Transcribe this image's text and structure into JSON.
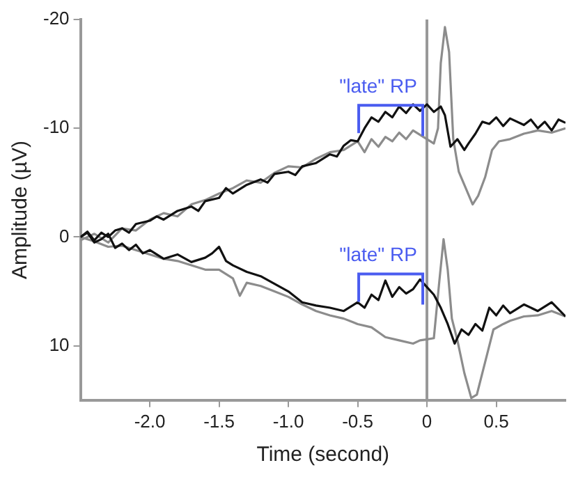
{
  "chart_data": {
    "type": "line",
    "xlabel": "Time (second)",
    "ylabel": "Amplitude (µV)",
    "xlim": [
      -2.5,
      1.0
    ],
    "xticks": [
      {
        "value": -2.0,
        "label": "-2.0"
      },
      {
        "value": -1.5,
        "label": "-1.5"
      },
      {
        "value": -1.0,
        "label": "-1.0"
      },
      {
        "value": -0.5,
        "label": "-0.5"
      },
      0,
      0.5
    ],
    "ylim": [
      15,
      -20
    ],
    "yticks": [
      -20,
      -10,
      0,
      10
    ],
    "grid": false,
    "legend": false,
    "marker": "none",
    "line_style": "solid",
    "ref_lines": [
      {
        "axis": "x",
        "value": 0,
        "color": "#999999"
      }
    ],
    "annotations": [
      {
        "text": "\"late\" RP",
        "x": -0.05,
        "y": -11.6
      },
      {
        "text": "\"late\" RP",
        "x": -0.05,
        "y": 3.9
      }
    ],
    "series": [
      {
        "color": "#111111",
        "x": [
          -2.5,
          -2.45,
          -2.4,
          -2.35,
          -2.3,
          -2.25,
          -2.2,
          -2.15,
          -2.1,
          -2.0,
          -1.95,
          -1.9,
          -1.8,
          -1.7,
          -1.65,
          -1.6,
          -1.5,
          -1.45,
          -1.4,
          -1.3,
          -1.2,
          -1.15,
          -1.1,
          -1.0,
          -0.95,
          -0.9,
          -0.8,
          -0.7,
          -0.65,
          -0.6,
          -0.55,
          -0.5,
          -0.45,
          -0.4,
          -0.35,
          -0.3,
          -0.25,
          -0.2,
          -0.15,
          -0.1,
          -0.05,
          0,
          0.05,
          0.1,
          0.13,
          0.17,
          0.22,
          0.27,
          0.3,
          0.35,
          0.4,
          0.45,
          0.5,
          0.55,
          0.6,
          0.7,
          0.75,
          0.8,
          0.85,
          0.9,
          0.95,
          1.0
        ],
        "values": [
          0,
          -0.5,
          0.3,
          -0.4,
          0,
          -0.6,
          -0.8,
          -0.4,
          -1.2,
          -1.5,
          -1.9,
          -1.6,
          -2.4,
          -2.8,
          -2.4,
          -3.3,
          -3.6,
          -4.5,
          -4.0,
          -4.8,
          -5.3,
          -5.0,
          -5.8,
          -6.0,
          -5.7,
          -6.5,
          -6.8,
          -7.6,
          -7.4,
          -8.4,
          -8.9,
          -8.8,
          -10.0,
          -11.0,
          -10.6,
          -11.5,
          -11.0,
          -12.0,
          -11.4,
          -12.2,
          -11.6,
          -12.2,
          -11.5,
          -12.0,
          -11.2,
          -8.3,
          -9.0,
          -8.0,
          -8.6,
          -9.5,
          -10.6,
          -10.4,
          -11.0,
          -10.2,
          -10.9,
          -10.3,
          -10.8,
          -10.0,
          -10.6,
          -9.8,
          -10.8,
          -10.5
        ]
      },
      {
        "color": "#111111",
        "x": [
          -2.5,
          -2.45,
          -2.4,
          -2.35,
          -2.3,
          -2.25,
          -2.2,
          -2.15,
          -2.1,
          -2.05,
          -2.0,
          -1.9,
          -1.8,
          -1.7,
          -1.6,
          -1.55,
          -1.5,
          -1.45,
          -1.4,
          -1.3,
          -1.2,
          -1.1,
          -1.0,
          -0.9,
          -0.8,
          -0.7,
          -0.6,
          -0.5,
          -0.45,
          -0.4,
          -0.35,
          -0.3,
          -0.25,
          -0.2,
          -0.15,
          -0.1,
          -0.05,
          0,
          0.05,
          0.1,
          0.15,
          0.2,
          0.25,
          0.3,
          0.35,
          0.4,
          0.45,
          0.5,
          0.55,
          0.6,
          0.7,
          0.8,
          0.9,
          1.0
        ],
        "values": [
          0,
          -0.4,
          0.5,
          0.2,
          -0.3,
          1.0,
          0.6,
          1.2,
          0.7,
          1.5,
          1.2,
          2.0,
          1.6,
          2.3,
          1.9,
          1.5,
          0.9,
          2.2,
          2.6,
          3.2,
          3.6,
          4.3,
          5.0,
          6.0,
          6.3,
          6.5,
          6.8,
          6.0,
          6.5,
          5.3,
          5.8,
          4.0,
          5.5,
          4.6,
          5.2,
          4.8,
          3.9,
          4.6,
          5.3,
          6.5,
          8.0,
          9.8,
          8.5,
          9.0,
          8.0,
          8.6,
          6.5,
          7.2,
          6.3,
          7.0,
          6.2,
          6.8,
          6.0,
          7.3
        ]
      },
      {
        "color": "#8c8c8c",
        "x": [
          -2.5,
          -2.4,
          -2.3,
          -2.2,
          -2.1,
          -2.0,
          -1.9,
          -1.8,
          -1.7,
          -1.6,
          -1.5,
          -1.4,
          -1.3,
          -1.2,
          -1.1,
          -1.0,
          -0.9,
          -0.8,
          -0.7,
          -0.6,
          -0.5,
          -0.45,
          -0.4,
          -0.35,
          -0.3,
          -0.25,
          -0.2,
          -0.15,
          -0.1,
          -0.05,
          0,
          0.05,
          0.08,
          0.1,
          0.13,
          0.16,
          0.19,
          0.23,
          0.28,
          0.33,
          0.37,
          0.42,
          0.47,
          0.52,
          0.6,
          0.7,
          0.8,
          0.9,
          1.0
        ],
        "values": [
          0.3,
          -0.3,
          0.5,
          -0.8,
          -0.6,
          -1.6,
          -2.2,
          -1.9,
          -3.0,
          -3.4,
          -4.0,
          -4.5,
          -5.2,
          -5.0,
          -5.9,
          -6.5,
          -6.4,
          -7.2,
          -7.8,
          -8.0,
          -8.8,
          -7.8,
          -9.0,
          -8.3,
          -9.2,
          -8.8,
          -9.6,
          -9.0,
          -9.8,
          -9.4,
          -9.0,
          -8.6,
          -10,
          -16,
          -19.3,
          -17,
          -9,
          -6,
          -4.5,
          -3.0,
          -3.8,
          -5.5,
          -8.0,
          -8.8,
          -9.0,
          -9.5,
          -9.8,
          -9.6,
          -10.0
        ]
      },
      {
        "color": "#8c8c8c",
        "x": [
          -2.5,
          -2.4,
          -2.3,
          -2.2,
          -2.1,
          -2.0,
          -1.9,
          -1.8,
          -1.7,
          -1.6,
          -1.5,
          -1.4,
          -1.35,
          -1.3,
          -1.2,
          -1.1,
          -1.0,
          -0.9,
          -0.8,
          -0.7,
          -0.6,
          -0.5,
          -0.4,
          -0.3,
          -0.2,
          -0.1,
          -0.05,
          0,
          0.05,
          0.09,
          0.12,
          0.15,
          0.18,
          0.22,
          0.27,
          0.32,
          0.36,
          0.42,
          0.48,
          0.55,
          0.6,
          0.7,
          0.8,
          0.9,
          1.0
        ],
        "values": [
          0,
          0.4,
          0.9,
          0.8,
          1.2,
          1.6,
          2.0,
          2.2,
          2.6,
          3.0,
          3.0,
          3.8,
          5.4,
          4.2,
          4.5,
          5.0,
          5.5,
          6.2,
          6.8,
          7.2,
          7.5,
          8.0,
          8.3,
          9.2,
          9.5,
          9.8,
          9.5,
          9.4,
          9.3,
          4,
          0.2,
          3,
          7.5,
          9.5,
          12.5,
          14.8,
          14.5,
          11.5,
          8.5,
          8.0,
          7.7,
          7.3,
          7.2,
          6.8,
          7.3
        ]
      }
    ]
  }
}
